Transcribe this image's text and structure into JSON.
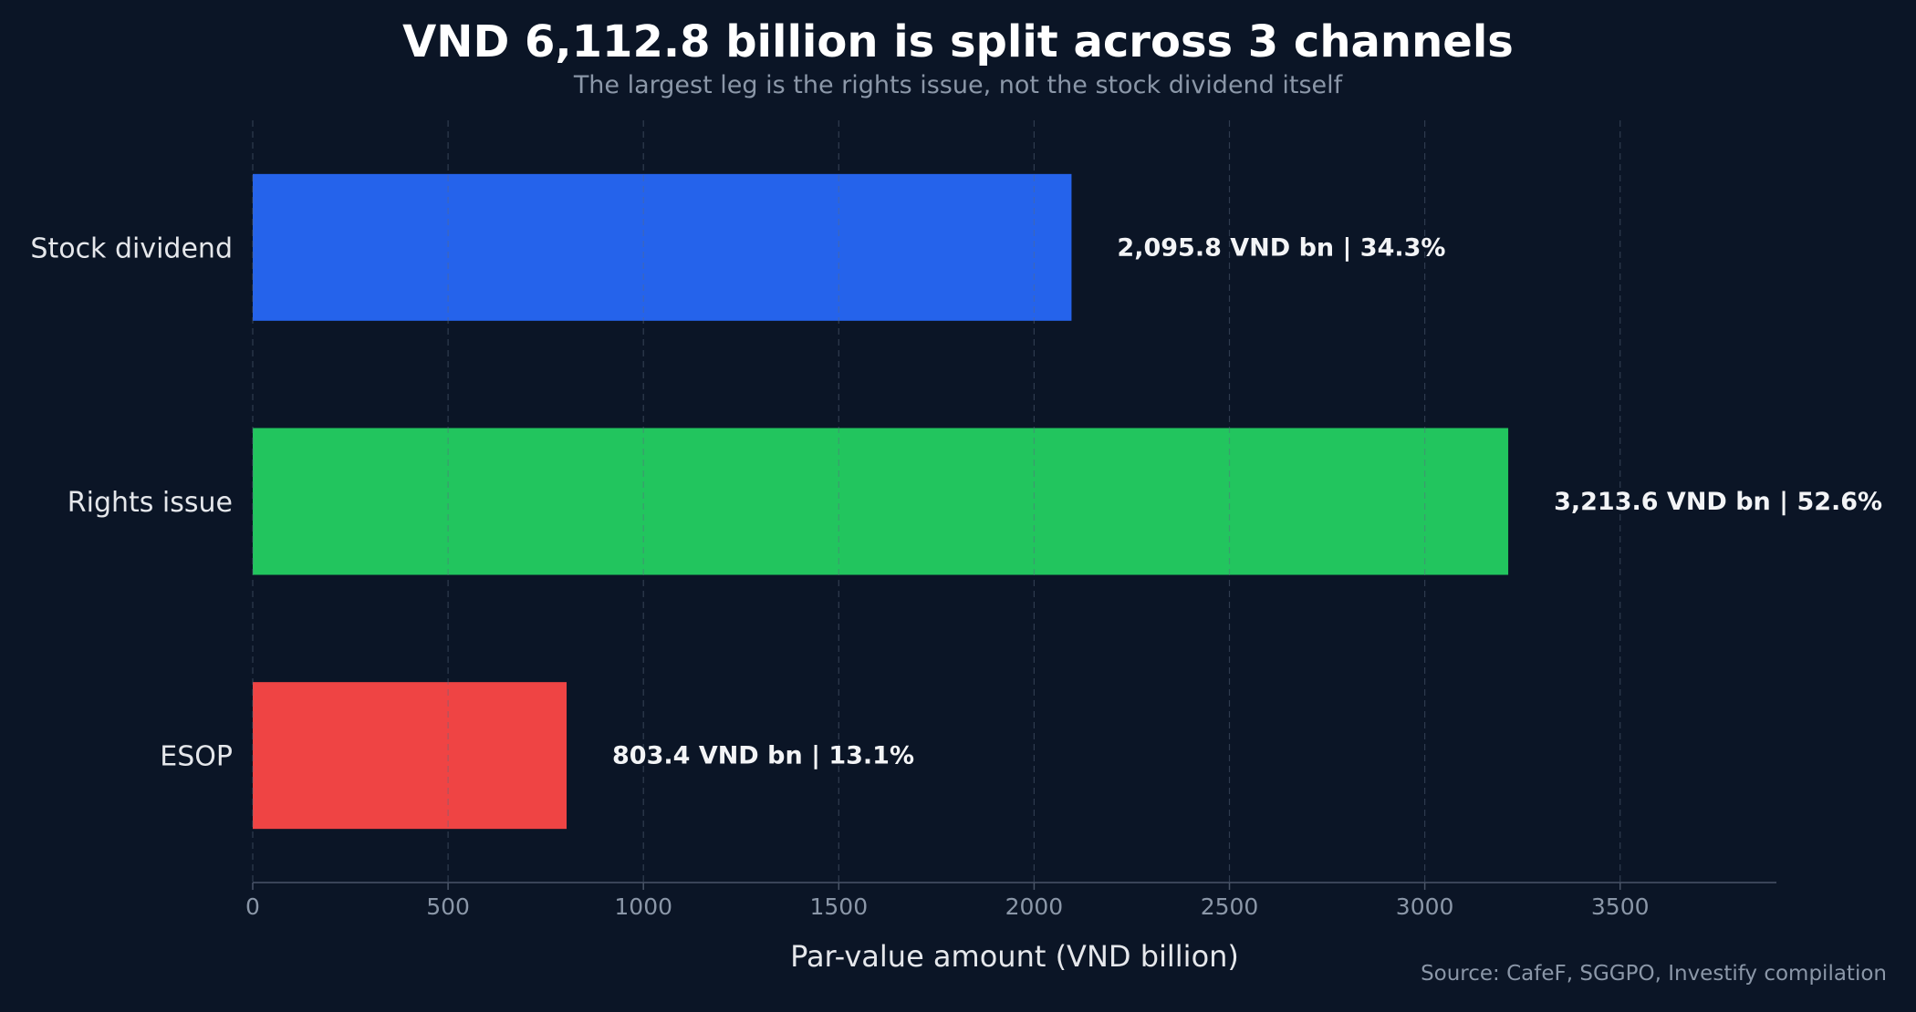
{
  "title": "VND 6,112.8 billion is split across 3 channels",
  "subtitle": "The largest leg is the rights issue, not the stock dividend itself",
  "source": "Source: CafeF, SGGPO, Investify compilation",
  "chart_data": {
    "type": "bar",
    "orientation": "horizontal",
    "title": "VND 6,112.8 billion is split across 3 channels",
    "subtitle": "The largest leg is the rights issue, not the stock dividend itself",
    "xlabel": "Par-value amount (VND billion)",
    "ylabel": "",
    "categories": [
      "Stock dividend",
      "Rights issue",
      "ESOP"
    ],
    "values": [
      2095.8,
      3213.6,
      803.4
    ],
    "data_labels": [
      "2,095.8 VND bn | 34.3%",
      "3,213.6 VND bn | 52.6%",
      "803.4 VND bn | 13.1%"
    ],
    "colors": [
      "#2563eb",
      "#22c55e",
      "#ef4444"
    ],
    "xlim": [
      0,
      3900
    ],
    "xticks": [
      0,
      500,
      1000,
      1500,
      2000,
      2500,
      3000,
      3500
    ],
    "xtick_labels": [
      "0",
      "500",
      "1000",
      "1500",
      "2000",
      "2500",
      "3000",
      "3500"
    ],
    "grid": "vertical dashed",
    "legend": "none"
  }
}
